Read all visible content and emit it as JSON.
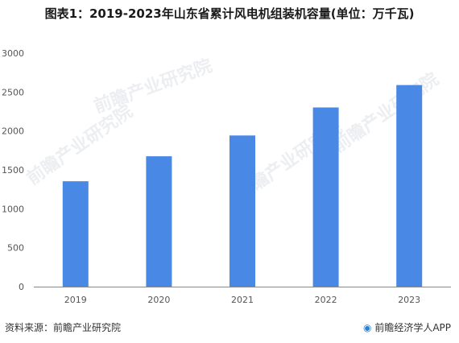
{
  "title": "图表1：2019-2023年山东省累计风电机组装机容量(单位：万千瓦)",
  "source": "资料来源：前瞻产业研究院",
  "brand": "前瞻经济学人APP",
  "watermark": "前瞻产业研究院",
  "colors": {
    "bar": "#4a88e6",
    "axis": "#888888",
    "text": "#555555"
  },
  "chart_data": {
    "type": "bar",
    "title": "图表1：2019-2023年山东省累计风电机组装机容量(单位：万千瓦)",
    "xlabel": "",
    "ylabel": "",
    "categories": [
      "2019",
      "2020",
      "2021",
      "2022",
      "2023"
    ],
    "values": [
      1354,
      1675,
      1942,
      2302,
      2590
    ],
    "ylim": [
      0,
      3000
    ],
    "yticks": [
      0,
      500,
      1000,
      1500,
      2000,
      2500,
      3000
    ],
    "grid": false,
    "legend": "none"
  }
}
